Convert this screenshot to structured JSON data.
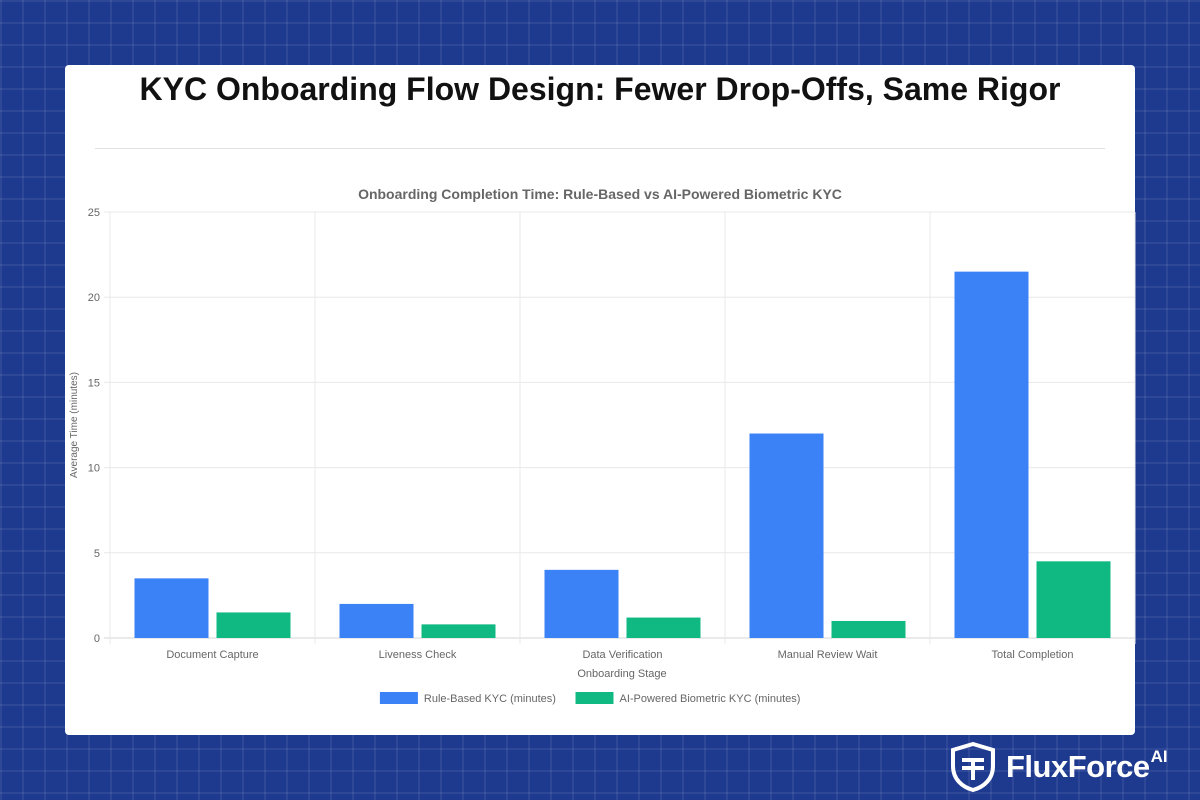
{
  "page": {
    "title": "KYC Onboarding Flow Design: Fewer Drop-Offs, Same Rigor"
  },
  "brand": {
    "name": "FluxForce",
    "suffix": "AI",
    "logo_icon": "shield-icon"
  },
  "colors": {
    "background": "#1e3a8f",
    "rule_based": "#3b82f6",
    "ai_powered": "#10b981"
  },
  "chart_data": {
    "type": "bar",
    "title": "Onboarding Completion Time: Rule-Based vs AI-Powered Biometric KYC",
    "xlabel": "Onboarding Stage",
    "ylabel": "Average Time (minutes)",
    "categories": [
      "Document Capture",
      "Liveness Check",
      "Data Verification",
      "Manual Review Wait",
      "Total Completion"
    ],
    "series": [
      {
        "name": "Rule-Based KYC (minutes)",
        "color": "#3b82f6",
        "values": [
          3.5,
          2,
          4,
          12,
          21.5
        ]
      },
      {
        "name": "AI-Powered Biometric KYC (minutes)",
        "color": "#10b981",
        "values": [
          1.5,
          0.8,
          1.2,
          1,
          4.5
        ]
      }
    ],
    "ylim": [
      0,
      25
    ],
    "yticks": [
      0,
      5,
      10,
      15,
      20,
      25
    ],
    "grid": true,
    "legend_position": "bottom"
  }
}
